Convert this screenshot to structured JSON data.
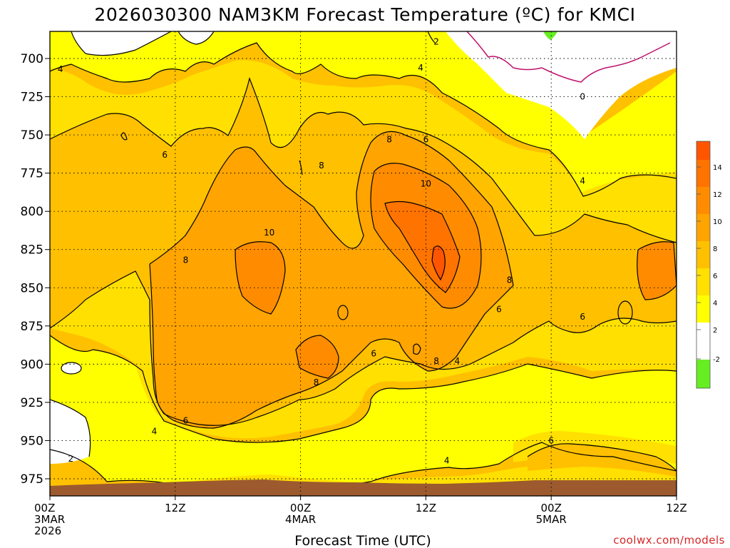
{
  "colors": {
    "below_minus2": "#66ee22",
    "minus2_to_2": "#ffffff",
    "2_to_4": "#ffff00",
    "4_to_6": "#ffe000",
    "6_to_8": "#ffc000",
    "8_to_10": "#ffa400",
    "10_to_12": "#ff8c00",
    "12_to_14": "#ff7300",
    "above_14": "#ff5500",
    "ground": "#9c5a2e",
    "zero_contour": "#c0106b",
    "credit": "#d62728"
  },
  "chart_data": {
    "type": "contour",
    "title": "2026030300 NAM3KM Forecast Temperature (ºC) for KMCI",
    "xlabel": "Forecast Time (UTC)",
    "ylabel": "",
    "credit": "coolwx.com/models",
    "x_ticks": [
      {
        "hour": 0,
        "line1": "00Z",
        "line2": "3MAR",
        "line3": "2026"
      },
      {
        "hour": 12,
        "line1": "12Z",
        "line2": "",
        "line3": ""
      },
      {
        "hour": 24,
        "line1": "00Z",
        "line2": "4MAR",
        "line3": ""
      },
      {
        "hour": 36,
        "line1": "12Z",
        "line2": "",
        "line3": ""
      },
      {
        "hour": 48,
        "line1": "00Z",
        "line2": "5MAR",
        "line3": ""
      },
      {
        "hour": 60,
        "line1": "12Z",
        "line2": "",
        "line3": ""
      }
    ],
    "xlim": [
      0,
      60
    ],
    "y_axis": "pressure (hPa), decreasing upward",
    "y_ticks": [
      700,
      725,
      750,
      775,
      800,
      825,
      850,
      875,
      900,
      925,
      950,
      975
    ],
    "ylim": [
      987,
      685
    ],
    "grid": true,
    "colorbar_ticks": [
      "14",
      "12",
      "10",
      "8",
      "6",
      "4",
      "2",
      "-2"
    ],
    "contour_levels": [
      0,
      2,
      4,
      6,
      8,
      10,
      12,
      14
    ],
    "contour_labels": [
      {
        "hour": 1,
        "p": 707,
        "text": "4"
      },
      {
        "hour": 37,
        "p": 689,
        "text": "2"
      },
      {
        "hour": 35.5,
        "p": 706,
        "text": "4"
      },
      {
        "hour": 51,
        "p": 725,
        "text": "0"
      },
      {
        "hour": 32.5,
        "p": 753,
        "text": "8"
      },
      {
        "hour": 36,
        "p": 753,
        "text": "6"
      },
      {
        "hour": 11,
        "p": 763,
        "text": "6"
      },
      {
        "hour": 26,
        "p": 770,
        "text": "8"
      },
      {
        "hour": 36,
        "p": 782,
        "text": "10"
      },
      {
        "hour": 51,
        "p": 780,
        "text": "4"
      },
      {
        "hour": 21,
        "p": 814,
        "text": "10"
      },
      {
        "hour": 13,
        "p": 832,
        "text": "8"
      },
      {
        "hour": 44,
        "p": 845,
        "text": "8"
      },
      {
        "hour": 43,
        "p": 864,
        "text": "6"
      },
      {
        "hour": 51,
        "p": 869,
        "text": "6"
      },
      {
        "hour": 31,
        "p": 893,
        "text": "6"
      },
      {
        "hour": 37,
        "p": 898,
        "text": "8"
      },
      {
        "hour": 39,
        "p": 898,
        "text": "4"
      },
      {
        "hour": 25.5,
        "p": 912,
        "text": "8"
      },
      {
        "hour": 13,
        "p": 937,
        "text": "6"
      },
      {
        "hour": 10,
        "p": 944,
        "text": "4"
      },
      {
        "hour": 48,
        "p": 950,
        "text": "6"
      },
      {
        "hour": 38,
        "p": 963,
        "text": "4"
      },
      {
        "hour": 2,
        "p": 962,
        "text": "2"
      }
    ],
    "approx_max": {
      "hour": 37,
      "p": 825,
      "value": 14
    },
    "ground_surface_hpa": 979
  }
}
